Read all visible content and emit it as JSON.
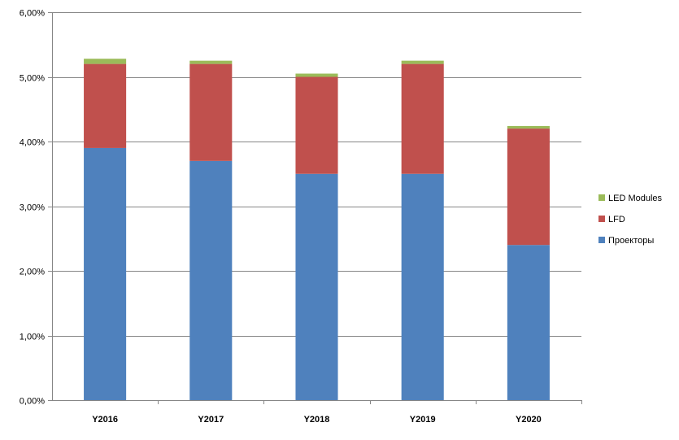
{
  "chart_data": {
    "type": "bar",
    "stacked": true,
    "categories": [
      "Y2016",
      "Y2017",
      "Y2018",
      "Y2019",
      "Y2020"
    ],
    "series": [
      {
        "name": "Проекторы",
        "color": "#4f81bd",
        "values": [
          0.039,
          0.037,
          0.035,
          0.035,
          0.024
        ]
      },
      {
        "name": "LFD",
        "color": "#c0504d",
        "values": [
          0.013,
          0.015,
          0.015,
          0.017,
          0.018
        ]
      },
      {
        "name": "LED Modules",
        "color": "#9bbb59",
        "values": [
          0.0008,
          0.0005,
          0.0005,
          0.0005,
          0.0004
        ]
      }
    ],
    "y_ticks": [
      "0,00%",
      "1,00%",
      "2,00%",
      "3,00%",
      "4,00%",
      "5,00%",
      "6,00%"
    ],
    "ylim": [
      0,
      0.06
    ],
    "grid": true,
    "legend_position": "right",
    "legend_order": [
      "LED Modules",
      "LFD",
      "Проекторы"
    ]
  }
}
